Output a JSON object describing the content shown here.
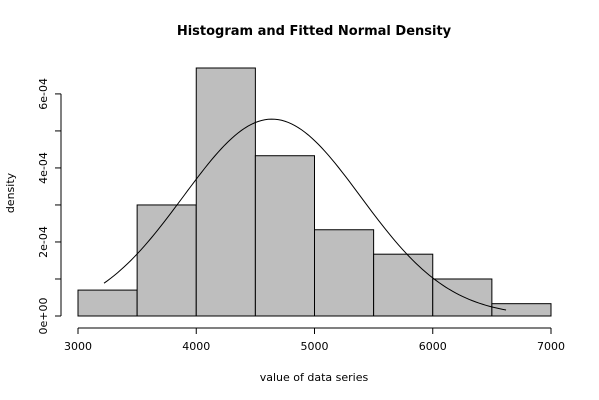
{
  "chart_data": {
    "type": "bar",
    "title": "Histogram and Fitted Normal Density",
    "xlabel": "value of data series",
    "ylabel": "density",
    "bins": [
      {
        "from": 3000,
        "to": 3500,
        "density": 7e-05
      },
      {
        "from": 3500,
        "to": 4000,
        "density": 0.0003
      },
      {
        "from": 4000,
        "to": 4500,
        "density": 0.00067
      },
      {
        "from": 4500,
        "to": 5000,
        "density": 0.000433
      },
      {
        "from": 5000,
        "to": 5500,
        "density": 0.000233
      },
      {
        "from": 5500,
        "to": 6000,
        "density": 0.000167
      },
      {
        "from": 6000,
        "to": 6500,
        "density": 0.0001
      },
      {
        "from": 6500,
        "to": 7000,
        "density": 3.33e-05
      }
    ],
    "fitted_normal": {
      "mean": 4640,
      "sd": 750,
      "x_range": [
        3220,
        6620
      ]
    },
    "xlim": [
      3000,
      7000
    ],
    "ylim": [
      0,
      0.00067
    ],
    "xticks": [
      3000,
      4000,
      5000,
      6000,
      7000
    ],
    "xtick_labels": [
      "3000",
      "4000",
      "5000",
      "6000",
      "7000"
    ],
    "yticks": [
      0,
      0.0001,
      0.0002,
      0.0003,
      0.0004,
      0.0005,
      0.0006
    ],
    "ytick_labels": [
      "0e+00",
      "",
      "2e-04",
      "",
      "4e-04",
      "",
      "6e-04"
    ],
    "grid": false,
    "colors": {
      "bar_fill": "#bebebe",
      "stroke": "#000000"
    }
  }
}
